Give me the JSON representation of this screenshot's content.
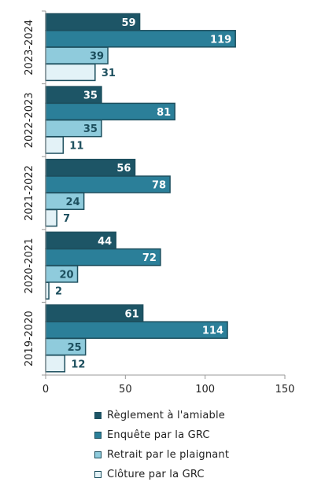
{
  "chart_data": {
    "type": "bar",
    "orientation": "horizontal",
    "categories": [
      "2023-2024",
      "2022-2023",
      "2021-2022",
      "2020-2021",
      "2019-2020"
    ],
    "series": [
      {
        "name": "Règlement à l'amiable",
        "color": "#1d5566",
        "values": [
          59,
          35,
          56,
          44,
          61
        ]
      },
      {
        "name": "Enquête par la GRC",
        "color": "#2b7f99",
        "values": [
          119,
          81,
          78,
          72,
          114
        ]
      },
      {
        "name": "Retrait par le plaignant",
        "color": "#8fcbdc",
        "values": [
          39,
          35,
          24,
          20,
          25
        ]
      },
      {
        "name": "Clôture par la GRC",
        "color": "#e3f2f7",
        "values": [
          31,
          11,
          7,
          2,
          12
        ]
      }
    ],
    "value_labels": [
      [
        "59",
        "119",
        "39",
        "31"
      ],
      [
        "35",
        "81",
        "35",
        "11"
      ],
      [
        "56",
        "78",
        "24",
        "7"
      ],
      [
        "44",
        "72",
        "20",
        "2"
      ],
      [
        "61",
        "114",
        "25",
        "12"
      ]
    ],
    "xlim": [
      0,
      150
    ],
    "xticks": [
      0,
      50,
      100,
      150
    ],
    "xtick_labels": [
      "0",
      "50",
      "100",
      "150"
    ],
    "grid": false,
    "legend_position": "bottom"
  }
}
